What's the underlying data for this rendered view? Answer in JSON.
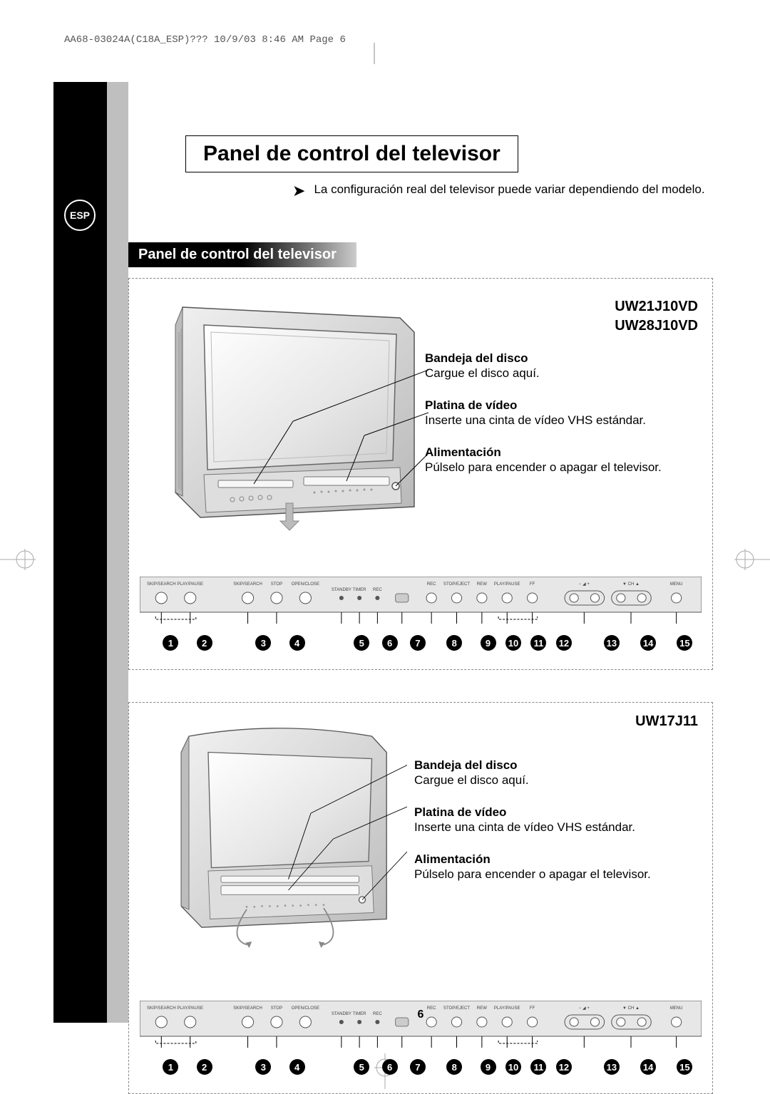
{
  "colors": {
    "black": "#000000",
    "gray_bar": "#bfbfbf",
    "dash": "#888888",
    "tv_body": "#d9d9d9",
    "tv_screen": "#ffffff",
    "panel_bg": "#e5e5e5"
  },
  "header_line": "AA68-03024A(C18A_ESP)???  10/9/03  8:46 AM  Page 6",
  "page_number": "6",
  "esp_label": "ESP",
  "title": "Panel de control del televisor",
  "note_text": "La configuración real del televisor puede variar dependiendo del modelo.",
  "section_title": "Panel de control del televisor",
  "models_set1_line1": "UW21J10VD",
  "models_set1_line2": "UW28J10VD",
  "models_set2": "UW17J11",
  "labels": {
    "disc": {
      "title": "Bandeja del disco",
      "desc": "Cargue el disco aquí."
    },
    "vcr": {
      "title": "Platina de vídeo",
      "desc": "Inserte una cinta de vídeo VHS estándar."
    },
    "power": {
      "title": "Alimentación",
      "desc": "Púlselo para encender o apagar el televisor."
    }
  },
  "panel_buttons": [
    "SKIP/SEARCH",
    "PLAY/PAUSE",
    "SKIP/SEARCH",
    "STOP",
    "OPEN/CLOSE",
    "STANDBY",
    "TIMER",
    "REC",
    "",
    "REC",
    "STOP/EJECT",
    "REW",
    "PLAY/PAUSE",
    "FF",
    "−",
    "+",
    "▼",
    "▲",
    "MENU"
  ],
  "bullet_positions_pct": [
    5.5,
    11.5,
    22,
    28,
    39.5,
    44.5,
    49.5,
    56,
    62,
    66.5,
    71,
    75.5,
    84,
    90.5,
    97
  ]
}
